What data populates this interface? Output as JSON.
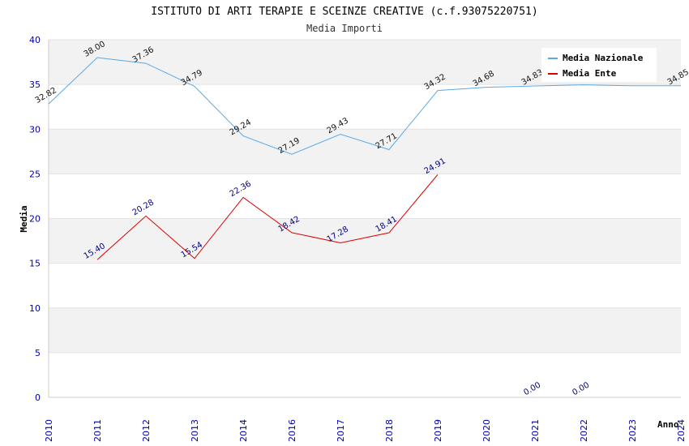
{
  "chart_data": {
    "type": "line",
    "title": "ISTITUTO DI ARTI TERAPIE E SCEINZE CREATIVE (c.f.93075220751)",
    "subtitle": "Media Importi",
    "xlabel": "Anno",
    "ylabel": "Media",
    "ylim": [
      0,
      40
    ],
    "yticks": [
      0,
      5,
      10,
      15,
      20,
      25,
      30,
      35,
      40
    ],
    "categories": [
      "2010",
      "2011",
      "2012",
      "2013",
      "2014",
      "2016",
      "2017",
      "2018",
      "2019",
      "2020",
      "2021",
      "2022",
      "2023",
      "2024"
    ],
    "grid": true,
    "legend_position": "top-right",
    "series": [
      {
        "name": "Media Nazionale",
        "color": "#5aa9e6",
        "label_color": "#111111",
        "values": [
          32.82,
          38.0,
          37.36,
          34.79,
          29.24,
          27.19,
          29.43,
          27.71,
          34.32,
          34.68,
          34.83,
          34.95,
          34.85,
          34.85
        ],
        "labels": [
          "32.82",
          "38.00",
          "37.36",
          "34.79",
          "29.24",
          "27.19",
          "29.43",
          "27.71",
          "34.32",
          "34.68",
          "34.83",
          "",
          "",
          "34.85"
        ]
      },
      {
        "name": "Media Ente",
        "color": "#dd0000",
        "label_color": "#000080",
        "values": [
          null,
          15.4,
          20.28,
          15.54,
          22.36,
          18.42,
          17.28,
          18.41,
          24.91,
          null,
          null,
          null,
          null,
          null
        ],
        "labels": [
          "",
          "15.40",
          "20.28",
          "15.54",
          "22.36",
          "18.42",
          "17.28",
          "18.41",
          "24.91",
          "",
          "0.00",
          "0.00",
          "",
          ""
        ]
      }
    ]
  }
}
